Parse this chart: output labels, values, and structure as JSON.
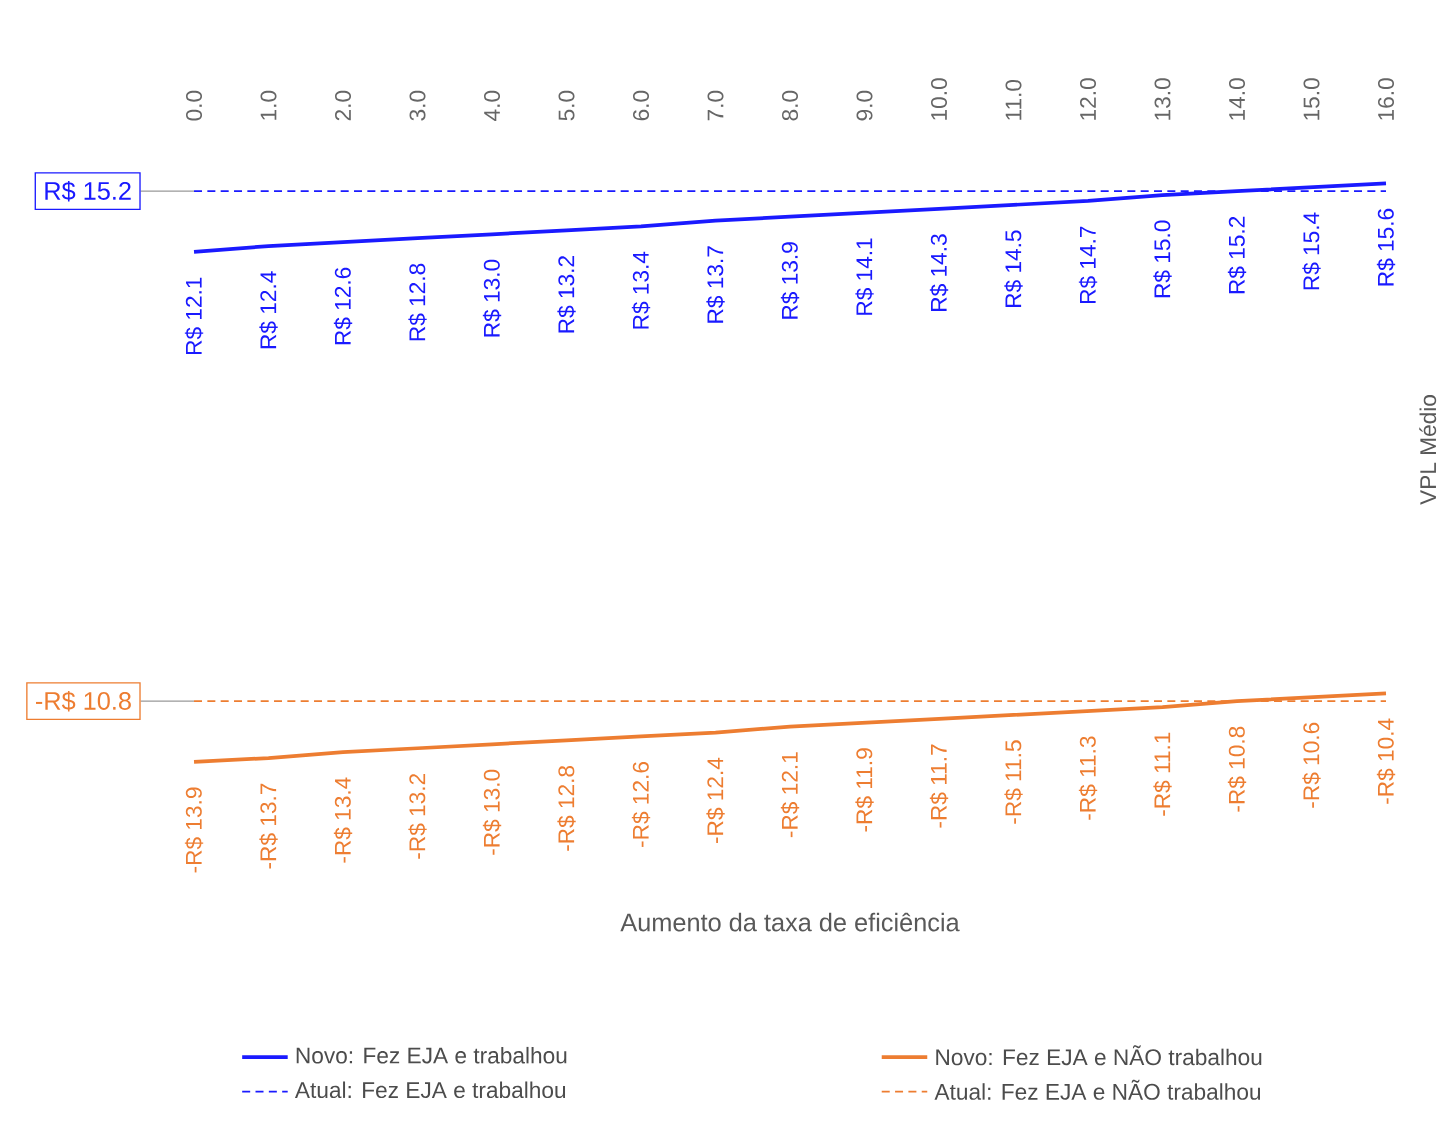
{
  "chart_data": {
    "type": "line",
    "ylabel": "VPL Médio",
    "categories": [
      "0.0",
      "1.0",
      "2.0",
      "3.0",
      "4.0",
      "5.0",
      "6.0",
      "7.0",
      "8.0",
      "9.0",
      "10.0",
      "11.0",
      "12.0",
      "13.0",
      "14.0",
      "15.0",
      "16.0"
    ],
    "tick_labels": "x",
    "legend": "bottom",
    "marker": "none",
    "series": [
      {
        "name": "Novo: Fez EJA e trabalhou",
        "color": "#1a1aff",
        "line_style": "solid",
        "values": [
          12.1,
          12.4,
          12.6,
          12.8,
          13.0,
          13.2,
          13.4,
          13.7,
          13.9,
          14.1,
          14.3,
          14.5,
          14.7,
          15.0,
          15.2,
          15.4,
          15.6
        ],
        "value_labels": [
          "R$ 12.1",
          "R$ 12.4",
          "R$ 12.6",
          "R$ 12.8",
          "R$ 13.0",
          "R$ 13.2",
          "R$ 13.4",
          "R$ 13.7",
          "R$ 13.9",
          "R$ 14.1",
          "R$ 14.3",
          "R$ 14.5",
          "R$ 14.7",
          "R$ 15.0",
          "R$ 15.2",
          "R$ 15.4",
          "R$ 15.6"
        ]
      },
      {
        "name": "Novo: Fez EJA e NÃO trabalhou",
        "color": "#ed7d31",
        "line_style": "solid",
        "values": [
          -13.9,
          -13.7,
          -13.4,
          -13.2,
          -13.0,
          -12.8,
          -12.6,
          -12.4,
          -12.1,
          -11.9,
          -11.7,
          -11.5,
          -11.3,
          -11.1,
          -10.8,
          -10.6,
          -10.4
        ],
        "value_labels": [
          "-R$ 13.9",
          "-R$ 13.7",
          "-R$ 13.4",
          "-R$ 13.2",
          "-R$ 13.0",
          "-R$ 12.8",
          "-R$ 12.6",
          "-R$ 12.4",
          "-R$ 12.1",
          "-R$ 11.9",
          "-R$ 11.7",
          "-R$ 11.5",
          "-R$ 11.3",
          "-R$ 11.1",
          "-R$ 10.8",
          "-R$ 10.6",
          "-R$ 10.4"
        ]
      },
      {
        "name": "Atual: Fez EJA e trabalhou",
        "color": "#1a1aff",
        "line_style": "dashed",
        "values": [
          15.2,
          15.2,
          15.2,
          15.2,
          15.2,
          15.2,
          15.2,
          15.2,
          15.2,
          15.2,
          15.2,
          15.2,
          15.2,
          15.2,
          15.2,
          15.2,
          15.2
        ]
      },
      {
        "name": "Atual: Fez EJA e NÃO trabalhou",
        "color": "#ed7d31",
        "line_style": "dashed",
        "values": [
          -10.8,
          -10.8,
          -10.8,
          -10.8,
          -10.8,
          -10.8,
          -10.8,
          -10.8,
          -10.8,
          -10.8,
          -10.8,
          -10.8,
          -10.8,
          -10.8,
          -10.8,
          -10.8,
          -10.8
        ]
      }
    ],
    "annotations": [
      "R$ 15.2",
      "-R$ 10.8",
      "Aumento da taxa de eficiência"
    ]
  }
}
